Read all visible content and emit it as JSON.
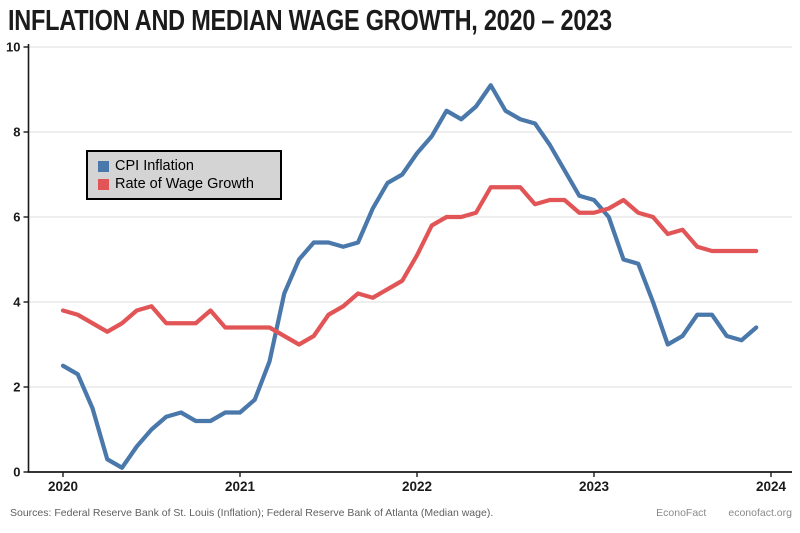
{
  "title": "INFLATION AND MEDIAN WAGE GROWTH, 2020 – 2023",
  "legend": {
    "items": [
      {
        "label": "CPI Inflation",
        "color": "#4a78ab"
      },
      {
        "label": "Rate of Wage Growth",
        "color": "#e25556"
      }
    ]
  },
  "footer": {
    "sources": "Sources: Federal Reserve Bank of St. Louis (Inflation); Federal Reserve Bank of Atlanta (Median wage).",
    "brand": "EconoFact",
    "site": "econofact.org"
  },
  "chart_data": {
    "type": "line",
    "title": "INFLATION AND MEDIAN WAGE GROWTH, 2020 – 2023",
    "x_unit": "month",
    "x_start": "2020-01",
    "x_end": "2023-12",
    "x_tick_labels": [
      "2020",
      "2021",
      "2022",
      "2023",
      "2024"
    ],
    "y_tick_labels": [
      0,
      2,
      4,
      6,
      8,
      10
    ],
    "ylim": [
      0,
      10
    ],
    "grid": "horizontal",
    "legend_position": "upper-left-inside",
    "colors": {
      "grid": "#dcdcdc",
      "axis": "#1a1a1a"
    },
    "series": [
      {
        "name": "CPI Inflation",
        "color": "#4a78ab",
        "values": [
          2.5,
          2.3,
          1.5,
          0.3,
          0.1,
          0.6,
          1.0,
          1.3,
          1.4,
          1.2,
          1.2,
          1.4,
          1.4,
          1.7,
          2.6,
          4.2,
          5.0,
          5.4,
          5.4,
          5.3,
          5.4,
          6.2,
          6.8,
          7.0,
          7.5,
          7.9,
          8.5,
          8.3,
          8.6,
          9.1,
          8.5,
          8.3,
          8.2,
          7.7,
          7.1,
          6.5,
          6.4,
          6.0,
          5.0,
          4.9,
          4.0,
          3.0,
          3.2,
          3.7,
          3.7,
          3.2,
          3.1,
          3.4
        ]
      },
      {
        "name": "Rate of Wage Growth",
        "color": "#e25556",
        "values": [
          3.8,
          3.7,
          3.5,
          3.3,
          3.5,
          3.8,
          3.9,
          3.5,
          3.5,
          3.5,
          3.8,
          3.4,
          3.4,
          3.4,
          3.4,
          3.2,
          3.0,
          3.2,
          3.7,
          3.9,
          4.2,
          4.1,
          4.3,
          4.5,
          5.1,
          5.8,
          6.0,
          6.0,
          6.1,
          6.7,
          6.7,
          6.7,
          6.3,
          6.4,
          6.4,
          6.1,
          6.1,
          6.2,
          6.4,
          6.1,
          6.0,
          5.6,
          5.7,
          5.3,
          5.2,
          5.2,
          5.2,
          5.2
        ]
      }
    ]
  }
}
